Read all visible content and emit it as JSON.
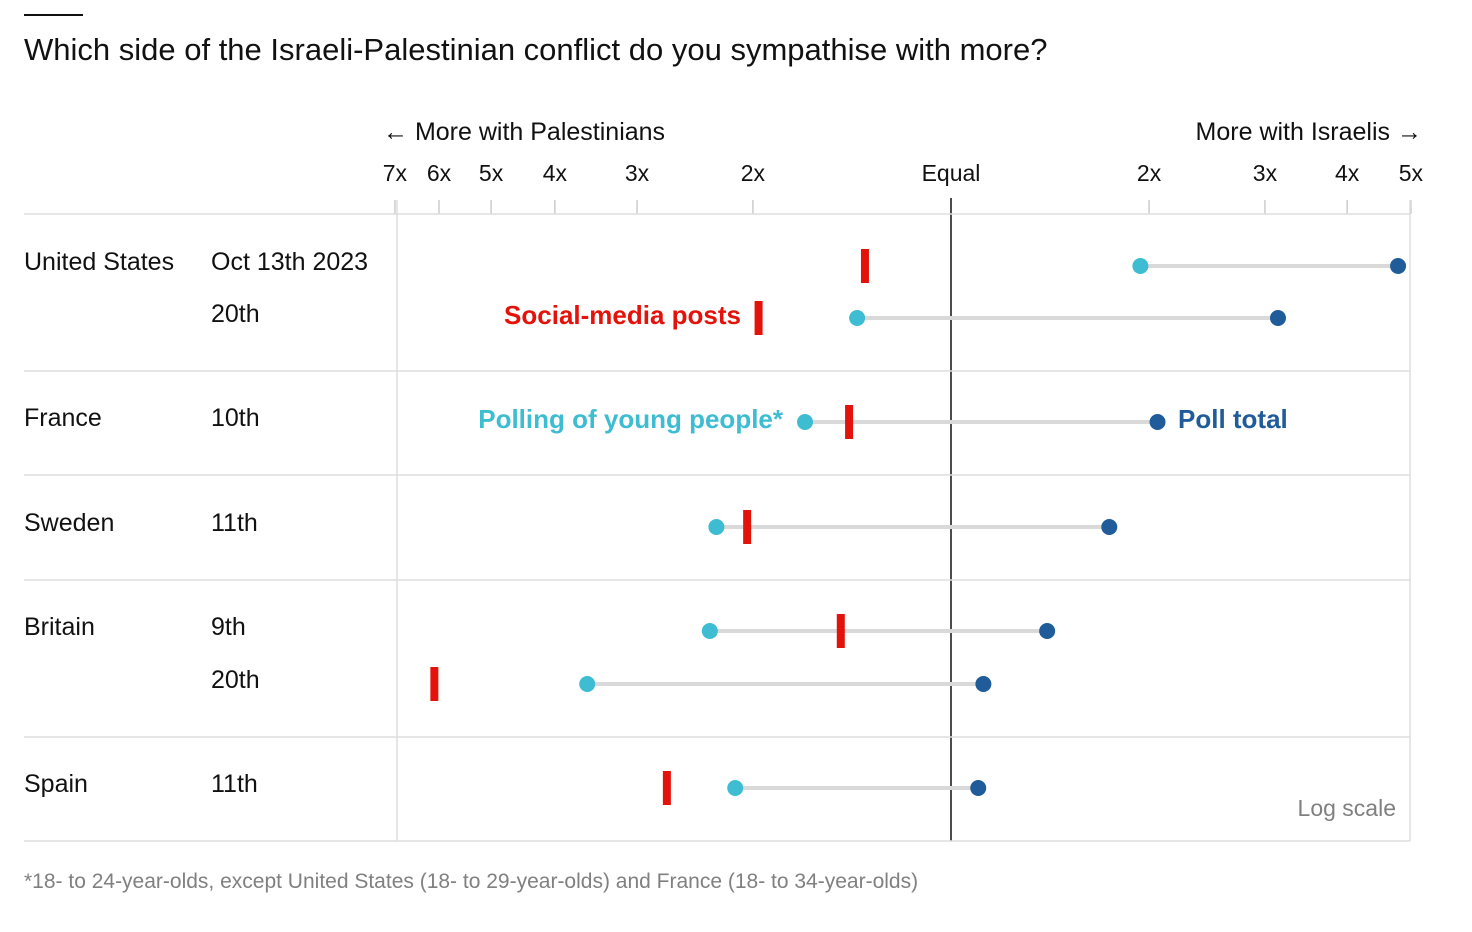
{
  "chart_data": {
    "type": "dot-range",
    "title": "Which side of the Israeli-Palestinian conflict do you sympathise with more?",
    "direction_labels": {
      "left": "← More with Palestinians",
      "right": "More with Israelis →"
    },
    "scale": "log",
    "scale_label": "Log scale",
    "ticks": [
      {
        "label": "7x",
        "ratio": 0.142857
      },
      {
        "label": "6x",
        "ratio": 0.166667
      },
      {
        "label": "5x",
        "ratio": 0.2
      },
      {
        "label": "4x",
        "ratio": 0.25
      },
      {
        "label": "3x",
        "ratio": 0.333333
      },
      {
        "label": "2x",
        "ratio": 0.5
      },
      {
        "label": "Equal",
        "ratio": 1
      },
      {
        "label": "2x",
        "ratio": 2
      },
      {
        "label": "3x",
        "ratio": 3
      },
      {
        "label": "4x",
        "ratio": 4
      },
      {
        "label": "5x",
        "ratio": 5
      }
    ],
    "value_note": "ratio of Israeli to Palestinian sympathy; <1 = more with Palestinians",
    "series": [
      {
        "name": "Social-media posts",
        "color": "#e3120b"
      },
      {
        "name": "Polling of young people*",
        "color": "#3ebcd2"
      },
      {
        "name": "Poll total",
        "color": "#1f5c99"
      }
    ],
    "groups": [
      {
        "country": "United States",
        "rows": [
          {
            "date": "Oct 13th 2023",
            "social": 0.74,
            "young": 1.94,
            "total": 4.78
          },
          {
            "date": "20th",
            "social": 0.51,
            "young": 0.72,
            "total": 3.14
          }
        ]
      },
      {
        "country": "France",
        "rows": [
          {
            "date": "10th",
            "social": 0.7,
            "young": 0.6,
            "total": 2.06
          }
        ]
      },
      {
        "country": "Sweden",
        "rows": [
          {
            "date": "11th",
            "social": 0.49,
            "young": 0.44,
            "total": 1.74
          }
        ]
      },
      {
        "country": "Britain",
        "rows": [
          {
            "date": "9th",
            "social": 0.68,
            "young": 0.43,
            "total": 1.4
          },
          {
            "date": "20th",
            "social": 0.164,
            "young": 0.28,
            "total": 1.12
          }
        ]
      },
      {
        "country": "Spain",
        "rows": [
          {
            "date": "11th",
            "social": 0.37,
            "young": 0.47,
            "total": 1.1
          }
        ]
      }
    ],
    "footnote": "*18- to 24-year-olds, except United States (18- to 29-year-olds) and France (18- to 34-year-olds)"
  }
}
